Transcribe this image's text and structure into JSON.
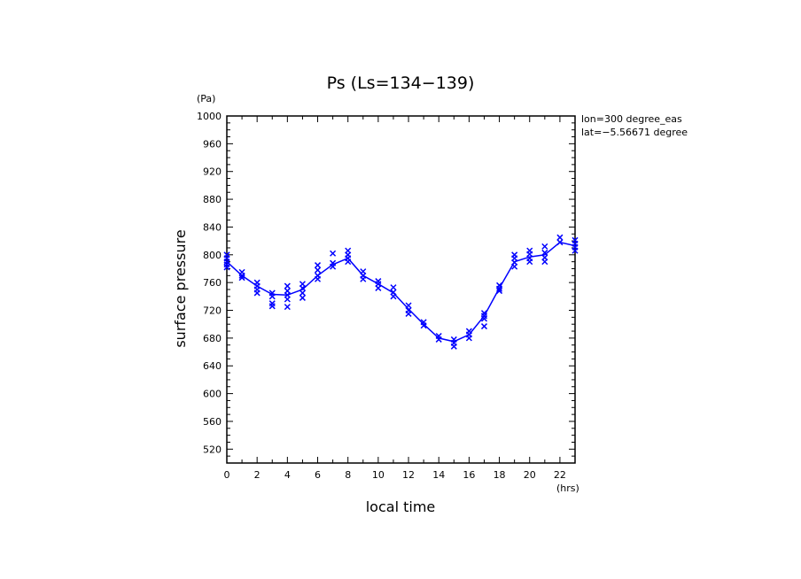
{
  "chart_data": {
    "type": "line",
    "title": "Ps (Ls=134−139)",
    "xlabel": "local time",
    "ylabel": "surface pressure",
    "x_unit": "(hrs)",
    "y_unit": "(Pa)",
    "xlim": [
      0,
      23
    ],
    "ylim": [
      500,
      1000
    ],
    "x_ticks": [
      "0",
      "2",
      "4",
      "6",
      "8",
      "10",
      "12",
      "14",
      "16",
      "18",
      "20",
      "22"
    ],
    "y_ticks": [
      "520",
      "560",
      "600",
      "640",
      "680",
      "720",
      "760",
      "800",
      "840",
      "880",
      "920",
      "960",
      "1000"
    ],
    "annotations": [
      "lon=300 degree_eas",
      "lat=−5.56671 degree"
    ],
    "grid": false,
    "series": [
      {
        "type": "line",
        "x": [
          0,
          1,
          2,
          3,
          4,
          5,
          6,
          7,
          8,
          9,
          10,
          11,
          12,
          13,
          14,
          15,
          16,
          17,
          18,
          19,
          20,
          21,
          22,
          23
        ],
        "values": [
          790,
          770,
          755,
          743,
          742,
          750,
          770,
          786,
          795,
          770,
          758,
          745,
          722,
          700,
          680,
          675,
          685,
          712,
          752,
          790,
          797,
          800,
          818,
          813
        ]
      },
      {
        "type": "scatter",
        "marker": "x",
        "points": [
          [
            0,
            800
          ],
          [
            0,
            795
          ],
          [
            0,
            790
          ],
          [
            0,
            786
          ],
          [
            0,
            782
          ],
          [
            1,
            775
          ],
          [
            1,
            770
          ],
          [
            1,
            767
          ],
          [
            2,
            760
          ],
          [
            2,
            755
          ],
          [
            2,
            750
          ],
          [
            2,
            745
          ],
          [
            3,
            745
          ],
          [
            3,
            740
          ],
          [
            3,
            730
          ],
          [
            3,
            726
          ],
          [
            4,
            755
          ],
          [
            4,
            748
          ],
          [
            4,
            742
          ],
          [
            4,
            736
          ],
          [
            4,
            725
          ],
          [
            5,
            758
          ],
          [
            5,
            752
          ],
          [
            5,
            745
          ],
          [
            5,
            738
          ],
          [
            6,
            785
          ],
          [
            6,
            778
          ],
          [
            6,
            770
          ],
          [
            6,
            765
          ],
          [
            7,
            802
          ],
          [
            7,
            788
          ],
          [
            7,
            783
          ],
          [
            8,
            806
          ],
          [
            8,
            800
          ],
          [
            8,
            795
          ],
          [
            8,
            790
          ],
          [
            9,
            776
          ],
          [
            9,
            770
          ],
          [
            9,
            765
          ],
          [
            10,
            762
          ],
          [
            10,
            758
          ],
          [
            10,
            752
          ],
          [
            11,
            753
          ],
          [
            11,
            746
          ],
          [
            11,
            740
          ],
          [
            12,
            727
          ],
          [
            12,
            720
          ],
          [
            12,
            715
          ],
          [
            13,
            703
          ],
          [
            13,
            698
          ],
          [
            14,
            683
          ],
          [
            14,
            678
          ],
          [
            15,
            678
          ],
          [
            15,
            673
          ],
          [
            15,
            668
          ],
          [
            16,
            690
          ],
          [
            16,
            685
          ],
          [
            16,
            680
          ],
          [
            17,
            716
          ],
          [
            17,
            712
          ],
          [
            17,
            708
          ],
          [
            17,
            697
          ],
          [
            18,
            756
          ],
          [
            18,
            751
          ],
          [
            18,
            748
          ],
          [
            19,
            800
          ],
          [
            19,
            795
          ],
          [
            19,
            789
          ],
          [
            19,
            783
          ],
          [
            20,
            806
          ],
          [
            20,
            801
          ],
          [
            20,
            795
          ],
          [
            20,
            790
          ],
          [
            21,
            812
          ],
          [
            21,
            803
          ],
          [
            21,
            796
          ],
          [
            21,
            790
          ],
          [
            22,
            825
          ],
          [
            22,
            818
          ],
          [
            23,
            821
          ],
          [
            23,
            816
          ],
          [
            23,
            811
          ],
          [
            23,
            806
          ]
        ]
      }
    ],
    "colors": {
      "series": "#0000ff",
      "axes": "#000000"
    }
  }
}
